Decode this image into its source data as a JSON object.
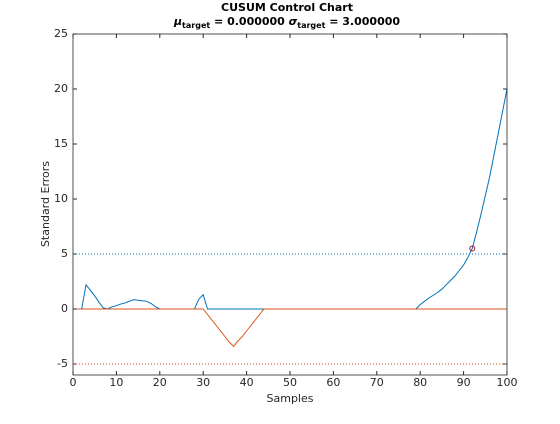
{
  "chart_data": {
    "type": "line",
    "title": "CUSUM Control Chart",
    "subtitle_parts": [
      "μ",
      "target",
      " = 0.000000 ",
      "σ",
      "target",
      " = 3.000000"
    ],
    "xlabel": "Samples",
    "ylabel": "Standard Errors",
    "xlim": [
      0,
      100
    ],
    "xticks": [
      0,
      10,
      20,
      30,
      40,
      50,
      60,
      70,
      80,
      90,
      100
    ],
    "ylim": [
      -6,
      25
    ],
    "yticks": [
      -5,
      0,
      5,
      10,
      15,
      20,
      25
    ],
    "x": [
      1,
      2,
      3,
      4,
      5,
      6,
      7,
      8,
      9,
      10,
      11,
      12,
      13,
      14,
      15,
      16,
      17,
      18,
      19,
      20,
      21,
      22,
      23,
      24,
      25,
      26,
      27,
      28,
      29,
      30,
      31,
      32,
      33,
      34,
      35,
      36,
      37,
      38,
      39,
      40,
      41,
      42,
      43,
      44,
      45,
      46,
      47,
      48,
      49,
      50,
      51,
      52,
      53,
      54,
      55,
      56,
      57,
      58,
      59,
      60,
      61,
      62,
      63,
      64,
      65,
      66,
      67,
      68,
      69,
      70,
      71,
      72,
      73,
      74,
      75,
      76,
      77,
      78,
      79,
      80,
      81,
      82,
      83,
      84,
      85,
      86,
      87,
      88,
      89,
      90,
      91,
      92,
      93,
      94,
      95,
      96,
      97,
      98,
      99,
      100
    ],
    "series": [
      {
        "color": "#0072bd",
        "values": [
          0,
          0,
          2.2,
          1.7,
          1.2,
          0.6,
          0.1,
          0,
          0.2,
          0.3,
          0.45,
          0.55,
          0.7,
          0.85,
          0.8,
          0.75,
          0.7,
          0.5,
          0.2,
          0,
          0,
          0,
          0,
          0,
          0,
          0,
          0,
          0,
          0.9,
          1.3,
          0,
          0,
          0,
          0,
          0,
          0,
          0,
          0,
          0,
          0,
          0,
          0,
          0,
          0,
          0,
          0,
          0,
          0,
          0,
          0,
          0,
          0,
          0,
          0,
          0,
          0,
          0,
          0,
          0,
          0,
          0,
          0,
          0,
          0,
          0,
          0,
          0,
          0,
          0,
          0,
          0,
          0,
          0,
          0,
          0,
          0,
          0,
          0,
          0,
          0.4,
          0.7,
          1.0,
          1.25,
          1.5,
          1.8,
          2.2,
          2.6,
          3.0,
          3.5,
          4.0,
          4.7,
          5.5,
          7,
          8.6,
          10.3,
          12,
          14,
          16,
          18,
          20
        ]
      },
      {
        "color": "#d95319",
        "values": [
          0,
          0,
          0,
          0,
          0,
          0,
          0,
          0,
          0,
          0,
          0,
          0,
          0,
          0,
          0,
          0,
          0,
          0,
          0,
          0,
          0,
          0,
          0,
          0,
          0,
          0,
          0,
          0,
          0,
          0,
          -0.5,
          -1,
          -1.5,
          -2,
          -2.5,
          -3,
          -3.4,
          -2.9,
          -2.5,
          -2,
          -1.5,
          -1,
          -0.5,
          0,
          0,
          0,
          0,
          0,
          0,
          0,
          0,
          0,
          0,
          0,
          0,
          0,
          0,
          0,
          0,
          0,
          0,
          0,
          0,
          0,
          0,
          0,
          0,
          0,
          0,
          0,
          0,
          0,
          0,
          0,
          0,
          0,
          0,
          0,
          0,
          0,
          0,
          0,
          0,
          0,
          0,
          0,
          0,
          0,
          0,
          0,
          0,
          0,
          0,
          0,
          0,
          0,
          0,
          0,
          0,
          0
        ]
      }
    ],
    "limits": [
      {
        "value": 5,
        "color": "#0072bd"
      },
      {
        "value": -5,
        "color": "#d95319"
      }
    ],
    "violations": {
      "x": [
        92
      ],
      "values": [
        5.5
      ],
      "color": "#a2142f"
    }
  }
}
